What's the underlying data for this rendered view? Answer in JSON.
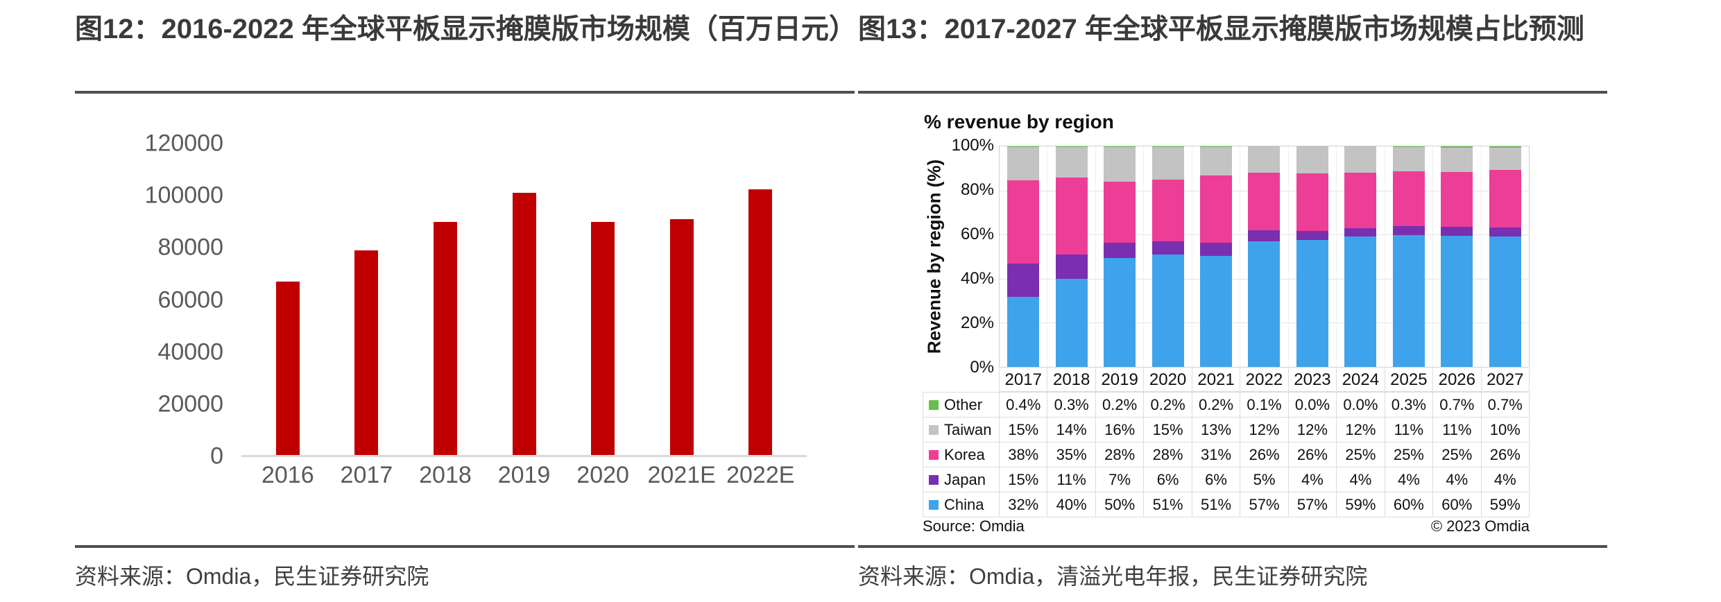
{
  "left_panel": {
    "title": "图12：2016-2022 年全球平板显示掩膜版市场规模（百万日元）",
    "source": "资料来源：Omdia，民生证券研究院"
  },
  "right_panel": {
    "title": "图13：2017-2027 年全球平板显示掩膜版市场规模占比预测",
    "source": "资料来源：Omdia，清溢光电年报，民生证券研究院"
  },
  "chart_data": [
    {
      "id": "fpd-photomask-market-size",
      "type": "bar",
      "title": "2016-2022 年全球平板显示掩膜版市场规模（百万日元）",
      "categories": [
        "2016",
        "2017",
        "2018",
        "2019",
        "2020",
        "2021E",
        "2022E"
      ],
      "values": [
        67000,
        79000,
        90000,
        101000,
        90000,
        91000,
        102500
      ],
      "bar_color": "#c00000",
      "ylim": [
        0,
        120000
      ],
      "ytick_labels": [
        "120000",
        "100000",
        "80000",
        "60000",
        "40000",
        "20000",
        "0"
      ],
      "grid": false,
      "axis_text_color": "#595959"
    },
    {
      "id": "fpd-photomask-revenue-share-by-region",
      "type": "stacked-bar",
      "title": "% revenue by region",
      "ylabel": "Revenue by region (%)",
      "ylim": [
        0,
        100
      ],
      "ytick_labels": [
        "100%",
        "80%",
        "60%",
        "40%",
        "20%",
        "0%"
      ],
      "grid": true,
      "legend_position": "table-left",
      "categories": [
        "2017",
        "2018",
        "2019",
        "2020",
        "2021",
        "2022",
        "2023",
        "2024",
        "2025",
        "2026",
        "2027"
      ],
      "series": [
        {
          "name": "China",
          "color": "#3fa3ec",
          "values": [
            32,
            40,
            50,
            51,
            51,
            57,
            57,
            59,
            60,
            60,
            59
          ],
          "labels": [
            "32%",
            "40%",
            "50%",
            "51%",
            "51%",
            "57%",
            "57%",
            "59%",
            "60%",
            "60%",
            "59%"
          ]
        },
        {
          "name": "Japan",
          "color": "#7a2eb0",
          "values": [
            15,
            11,
            7,
            6,
            6,
            5,
            4,
            4,
            4,
            4,
            4
          ],
          "labels": [
            "15%",
            "11%",
            "7%",
            "6%",
            "6%",
            "5%",
            "4%",
            "4%",
            "4%",
            "4%",
            "4%"
          ]
        },
        {
          "name": "Korea",
          "color": "#ec3e97",
          "values": [
            38,
            35,
            28,
            28,
            31,
            26,
            26,
            25,
            25,
            25,
            26
          ],
          "labels": [
            "38%",
            "35%",
            "28%",
            "28%",
            "31%",
            "26%",
            "26%",
            "25%",
            "25%",
            "25%",
            "26%"
          ]
        },
        {
          "name": "Taiwan",
          "color": "#c3c3c3",
          "values": [
            15,
            14,
            16,
            15,
            13,
            12,
            12,
            12,
            11,
            11,
            10
          ],
          "labels": [
            "15%",
            "14%",
            "16%",
            "15%",
            "13%",
            "12%",
            "12%",
            "12%",
            "11%",
            "11%",
            "10%"
          ]
        },
        {
          "name": "Other",
          "color": "#67be4b",
          "values": [
            0.4,
            0.3,
            0.2,
            0.2,
            0.2,
            0.1,
            0.0,
            0.0,
            0.3,
            0.7,
            0.7
          ],
          "labels": [
            "0.4%",
            "0.3%",
            "0.2%",
            "0.2%",
            "0.2%",
            "0.1%",
            "0.0%",
            "0.0%",
            "0.3%",
            "0.7%",
            "0.7%"
          ]
        }
      ],
      "stack_order_bottom_to_top": [
        "China",
        "Japan",
        "Korea",
        "Taiwan",
        "Other"
      ],
      "table_row_order": [
        "Other",
        "Taiwan",
        "Korea",
        "Japan",
        "China"
      ],
      "source_left": "Source: Omdia",
      "source_right": "© 2023 Omdia"
    }
  ]
}
